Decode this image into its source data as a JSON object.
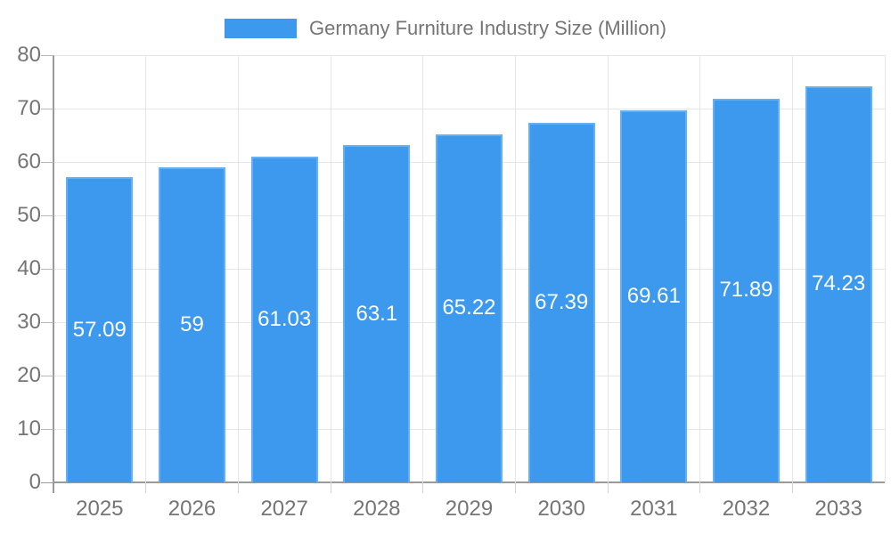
{
  "legend": {
    "label": "Germany Furniture Industry Size (Million)"
  },
  "colors": {
    "bar_fill": "#3C99EE",
    "axis_text": "#757575",
    "value_text": "#FFFFFF",
    "gridline": "#E6E6E6",
    "axis_line": "#9A9A9A",
    "tick_minor": "#D4D4D4",
    "background": "#FFFFFF"
  },
  "chart_data": {
    "type": "bar",
    "title": "Germany Furniture Industry Size (Million)",
    "categories": [
      "2025",
      "2026",
      "2027",
      "2028",
      "2029",
      "2030",
      "2031",
      "2032",
      "2033"
    ],
    "values": [
      57.09,
      59,
      61.03,
      63.1,
      65.22,
      67.39,
      69.61,
      71.89,
      74.23
    ],
    "xlabel": "",
    "ylabel": "",
    "ylim": [
      0,
      80
    ],
    "ytick_step": 10,
    "grid": true,
    "legend_position": "top",
    "bar_label_position": "center"
  }
}
